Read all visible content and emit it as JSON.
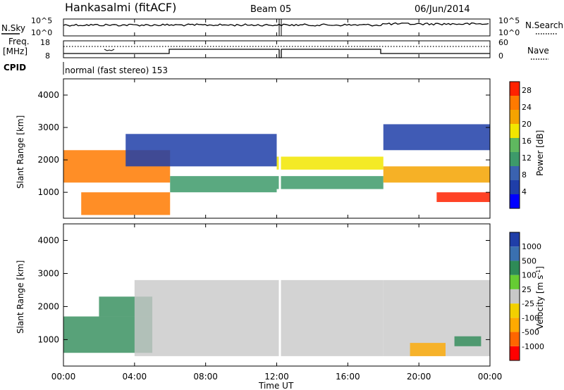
{
  "header": {
    "station": "Hankasalmi (fitACF)",
    "beam": "Beam 05",
    "date": "06/Jun/2014"
  },
  "noise_panel": {
    "left_label": "N.Sky",
    "right_label": "N.Search",
    "left_ticks": [
      "10^5",
      "10^0"
    ],
    "right_ticks": [
      "10^5",
      "10^0"
    ]
  },
  "freq_panel": {
    "left_label_1": "Freq.",
    "left_label_2": "[MHz]",
    "left_ticks": [
      "18",
      "8"
    ],
    "right_label": "Nave",
    "right_ticks": [
      "60",
      "0"
    ]
  },
  "cpid": {
    "label": "CPID",
    "value": "normal (fast stereo) 153"
  },
  "axes": {
    "ylabel": "Slant Range [km]",
    "xlabel": "Time UT",
    "y_ticks": [
      "1000",
      "2000",
      "3000",
      "4000"
    ],
    "x_ticks": [
      "00:00",
      "04:00",
      "08:00",
      "12:00",
      "16:00",
      "20:00",
      "00:00"
    ]
  },
  "colors": {
    "power": [
      "#0000ff",
      "#1f3ea8",
      "#3a62b0",
      "#3d9a6a",
      "#5fb85f",
      "#f2e600",
      "#f5a300",
      "#ff7a00",
      "#ff2200"
    ],
    "velocity": [
      "#ff0000",
      "#ff6600",
      "#ffaa00",
      "#f2d000",
      "#c8c8c8",
      "#66cc33",
      "#2e8b57",
      "#3a70b0",
      "#1f3ea8"
    ]
  },
  "chart_data": [
    {
      "type": "heatmap",
      "title": "Power",
      "xlabel": "Time UT",
      "ylabel": "Slant Range [km]",
      "xlim": [
        "00:00",
        "24:00"
      ],
      "ylim": [
        200,
        4500
      ],
      "colorbar": {
        "label": "Power [dB]",
        "ticks": [
          "4",
          "8",
          "12",
          "16",
          "20",
          "24",
          "28"
        ],
        "range": [
          0,
          30
        ]
      },
      "features": [
        {
          "t_start": 0.0,
          "t_end": 6.0,
          "range_start": 1300,
          "range_end": 2300,
          "value_db": 24
        },
        {
          "t_start": 1.0,
          "t_end": 6.0,
          "range_start": 300,
          "range_end": 1000,
          "value_db": 26
        },
        {
          "t_start": 3.5,
          "t_end": 12.0,
          "range_start": 1800,
          "range_end": 2800,
          "value_db": 6
        },
        {
          "t_start": 6.0,
          "t_end": 12.0,
          "range_start": 1000,
          "range_end": 1500,
          "value_db": 10
        },
        {
          "t_start": 12.0,
          "t_end": 18.0,
          "range_start": 1700,
          "range_end": 2100,
          "value_db": 18
        },
        {
          "t_start": 12.0,
          "t_end": 18.0,
          "range_start": 1100,
          "range_end": 1500,
          "value_db": 10
        },
        {
          "t_start": 18.0,
          "t_end": 24.0,
          "range_start": 1300,
          "range_end": 1800,
          "value_db": 20
        },
        {
          "t_start": 21.0,
          "t_end": 24.0,
          "range_start": 700,
          "range_end": 1000,
          "value_db": 28
        },
        {
          "t_start": 18.0,
          "t_end": 24.0,
          "range_start": 2300,
          "range_end": 3100,
          "value_db": 5
        }
      ]
    },
    {
      "type": "heatmap",
      "title": "Velocity",
      "xlabel": "Time UT",
      "ylabel": "Slant Range [km]",
      "xlim": [
        "00:00",
        "24:00"
      ],
      "ylim": [
        200,
        4500
      ],
      "colorbar": {
        "label": "Velocity [m s^-1]",
        "ticks": [
          "1000",
          "500",
          "100",
          "25",
          "-25",
          "-100",
          "-500",
          "-1000"
        ],
        "range": [
          -1200,
          1200
        ]
      },
      "features": [
        {
          "t_start": 0.0,
          "t_end": 5.0,
          "range_start": 600,
          "range_end": 1700,
          "value_ms": 400
        },
        {
          "t_start": 2.0,
          "t_end": 5.0,
          "range_start": 1700,
          "range_end": 2300,
          "value_ms": 200
        },
        {
          "t_start": 4.0,
          "t_end": 18.0,
          "range_start": 500,
          "range_end": 2800,
          "value_ms": 0
        },
        {
          "t_start": 18.0,
          "t_end": 24.0,
          "range_start": 500,
          "range_end": 2800,
          "value_ms": 0
        },
        {
          "t_start": 19.5,
          "t_end": 21.5,
          "range_start": 500,
          "range_end": 900,
          "value_ms": -300
        },
        {
          "t_start": 22.0,
          "t_end": 23.5,
          "range_start": 800,
          "range_end": 1100,
          "value_ms": 150
        }
      ]
    }
  ]
}
